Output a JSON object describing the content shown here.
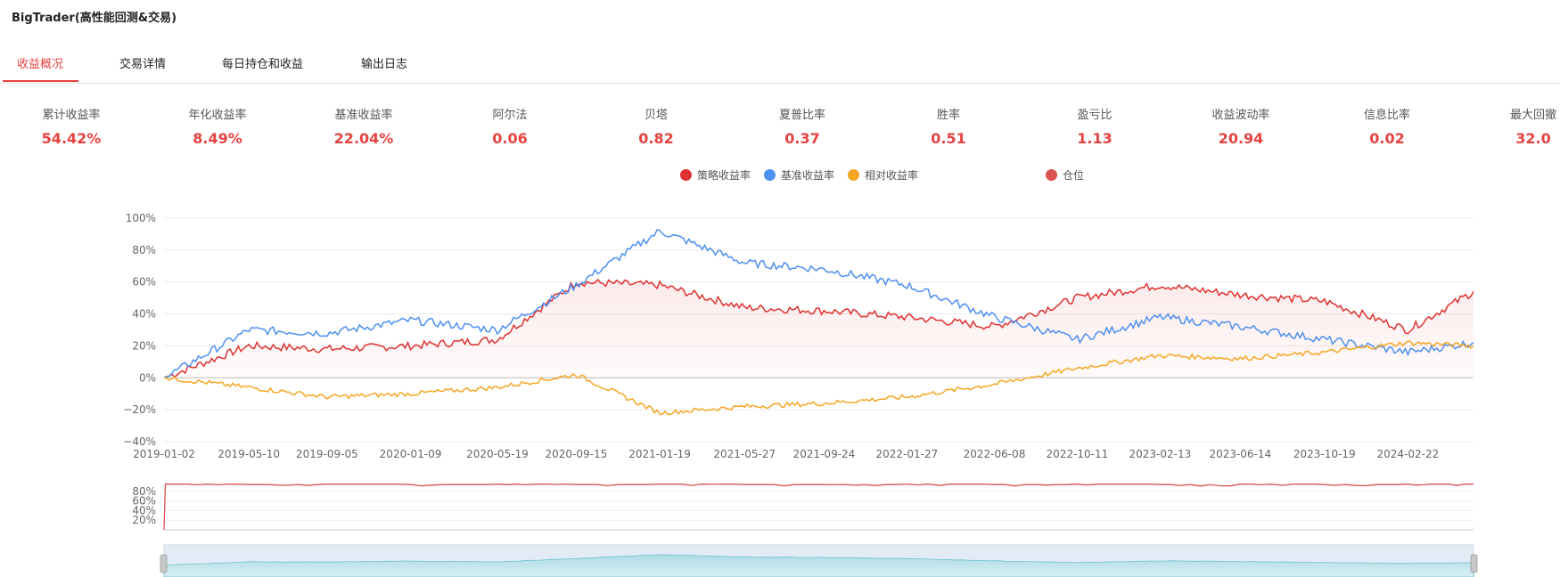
{
  "app": {
    "title": "BigTrader(高性能回测&交易)"
  },
  "tabs": [
    {
      "label": "收益概况",
      "active": true
    },
    {
      "label": "交易详情",
      "active": false
    },
    {
      "label": "每日持仓和收益",
      "active": false
    },
    {
      "label": "输出日志",
      "active": false
    }
  ],
  "metrics": [
    {
      "label": "累计收益率",
      "value": "54.42%"
    },
    {
      "label": "年化收益率",
      "value": "8.49%"
    },
    {
      "label": "基准收益率",
      "value": "22.04%"
    },
    {
      "label": "阿尔法",
      "value": "0.06"
    },
    {
      "label": "贝塔",
      "value": "0.82"
    },
    {
      "label": "夏普比率",
      "value": "0.37"
    },
    {
      "label": "胜率",
      "value": "0.51"
    },
    {
      "label": "盈亏比",
      "value": "1.13"
    },
    {
      "label": "收益波动率",
      "value": "20.94"
    },
    {
      "label": "信息比率",
      "value": "0.02"
    },
    {
      "label": "最大回撤",
      "value": "32.0"
    }
  ],
  "colors": {
    "accent": "#e64340",
    "strategy": "#e03131",
    "benchmark": "#4d90f0",
    "relative": "#f5a623",
    "position": "#d9534f"
  },
  "chart_data": [
    {
      "type": "line",
      "x": [
        "2019-01-02",
        "2019-05-10",
        "2019-09-05",
        "2020-01-09",
        "2020-05-19",
        "2020-09-15",
        "2021-01-19",
        "2021-05-27",
        "2021-09-24",
        "2022-01-27",
        "2022-06-08",
        "2022-10-11",
        "2023-02-13",
        "2023-06-14",
        "2023-10-19",
        "2024-02-22",
        "2024-05-31"
      ],
      "xticks": [
        "2019-01-02",
        "2019-05-10",
        "2019-09-05",
        "2020-01-09",
        "2020-05-19",
        "2020-09-15",
        "2021-01-19",
        "2021-05-27",
        "2021-09-24",
        "2022-01-27",
        "2022-06-08",
        "2022-10-11",
        "2023-02-13",
        "2023-06-14",
        "2023-10-19",
        "2024-02-22"
      ],
      "yticks": [
        "100%",
        "80%",
        "60%",
        "40%",
        "20%",
        "0%",
        "−20%",
        "−40%"
      ],
      "ylim": [
        -40,
        100
      ],
      "grid": true,
      "legend": "top-center",
      "series": [
        {
          "name": "策略收益率",
          "values": [
            0,
            20,
            18,
            20,
            24,
            60,
            58,
            44,
            42,
            38,
            32,
            50,
            58,
            52,
            48,
            30,
            54
          ]
        },
        {
          "name": "基准收益率",
          "values": [
            0,
            30,
            28,
            36,
            30,
            58,
            92,
            72,
            68,
            58,
            38,
            24,
            38,
            32,
            24,
            16,
            22
          ]
        },
        {
          "name": "相对收益率",
          "values": [
            0,
            -6,
            -12,
            -10,
            -6,
            2,
            -22,
            -18,
            -16,
            -12,
            -4,
            6,
            14,
            12,
            16,
            22,
            20
          ]
        }
      ]
    },
    {
      "type": "line",
      "x": [
        "2019-01-02",
        "2019-01-04",
        "2019-05-10",
        "2019-09-05",
        "2020-01-09",
        "2020-05-19",
        "2020-09-15",
        "2021-01-19",
        "2021-05-27",
        "2021-09-24",
        "2022-01-27",
        "2022-06-08",
        "2022-10-11",
        "2023-02-13",
        "2023-06-14",
        "2023-10-19",
        "2024-02-22",
        "2024-05-31"
      ],
      "yticks": [
        "80%",
        "60%",
        "40%",
        "20%"
      ],
      "ylim": [
        0,
        100
      ],
      "series": [
        {
          "name": "仓位",
          "values": [
            0,
            95,
            94,
            95,
            94,
            95,
            94,
            95,
            94,
            94,
            95,
            94,
            95,
            94,
            95,
            94,
            95,
            95
          ]
        }
      ]
    }
  ]
}
